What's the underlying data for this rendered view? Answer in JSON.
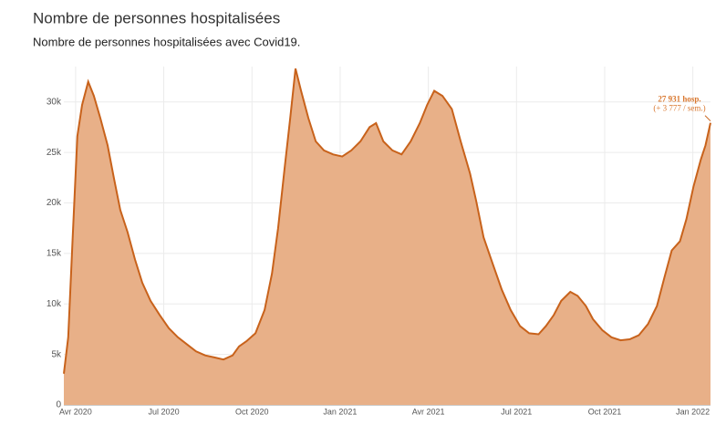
{
  "chart_data": {
    "type": "area",
    "title": "Nombre de personnes hospitalisées",
    "subtitle": "Nombre de personnes hospitalisées avec Covid19.",
    "annotation": "27 931 hosp.",
    "annotation_sub": "(+ 3 777 / sem.)",
    "color": "#c8621b",
    "fill": "#e8b088",
    "grid": true,
    "xlim": [
      -0.4,
      21.6
    ],
    "xticks": [
      {
        "value": 0,
        "label": "Avr 2020"
      },
      {
        "value": 3,
        "label": "Jul 2020"
      },
      {
        "value": 6,
        "label": "Oct 2020"
      },
      {
        "value": 9,
        "label": "Jan 2021"
      },
      {
        "value": 12,
        "label": "Avr 2021"
      },
      {
        "value": 15,
        "label": "Jul 2021"
      },
      {
        "value": 18,
        "label": "Oct 2021"
      },
      {
        "value": 21,
        "label": "Jan 2022"
      }
    ],
    "ylim": [
      0,
      33500
    ],
    "yticks": [
      0,
      {
        "value": 5000,
        "label": "5k"
      },
      {
        "value": 10000,
        "label": "10k"
      },
      {
        "value": 15000,
        "label": "15k"
      },
      {
        "value": 20000,
        "label": "20k"
      },
      {
        "value": 25000,
        "label": "25k"
      },
      {
        "value": 30000,
        "label": "30k"
      }
    ],
    "x": [
      -0.4,
      -0.25,
      -0.1,
      0.06,
      0.22,
      0.43,
      0.62,
      0.84,
      1.09,
      1.3,
      1.52,
      1.77,
      2.02,
      2.27,
      2.55,
      2.86,
      3.17,
      3.48,
      3.79,
      4.1,
      4.41,
      4.72,
      5.03,
      5.34,
      5.56,
      5.81,
      6.12,
      6.43,
      6.68,
      6.89,
      7.11,
      7.3,
      7.48,
      7.67,
      7.92,
      8.17,
      8.45,
      8.76,
      9.07,
      9.38,
      9.69,
      10,
      10.22,
      10.47,
      10.78,
      11.09,
      11.4,
      11.71,
      11.96,
      12.2,
      12.48,
      12.8,
      13.1,
      13.42,
      13.63,
      13.88,
      14.2,
      14.5,
      14.8,
      15.12,
      15.43,
      15.75,
      16,
      16.27,
      16.52,
      16.83,
      17.08,
      17.36,
      17.6,
      17.92,
      18.23,
      18.54,
      18.85,
      19.16,
      19.47,
      19.78,
      20.03,
      20.28,
      20.56,
      20.78,
      21.02,
      21.27,
      21.43,
      21.6
    ],
    "values": [
      3100,
      6700,
      16600,
      26600,
      29700,
      32000,
      30600,
      28400,
      25700,
      22500,
      19300,
      17100,
      14400,
      12100,
      10300,
      8900,
      7600,
      6700,
      6000,
      5300,
      4900,
      4700,
      4500,
      4900,
      5800,
      6300,
      7100,
      9400,
      13000,
      17500,
      23400,
      28400,
      33300,
      31100,
      28400,
      26100,
      25200,
      24800,
      24600,
      25200,
      26100,
      27500,
      27900,
      26100,
      25200,
      24800,
      26100,
      27900,
      29700,
      31100,
      30600,
      29300,
      26100,
      22900,
      20200,
      16600,
      13900,
      11400,
      9400,
      7800,
      7100,
      7000,
      7800,
      8900,
      10300,
      11200,
      10800,
      9800,
      8500,
      7400,
      6700,
      6400,
      6500,
      6900,
      8000,
      9800,
      12600,
      15300,
      16200,
      18400,
      21600,
      24300,
      25700,
      27931
    ]
  }
}
